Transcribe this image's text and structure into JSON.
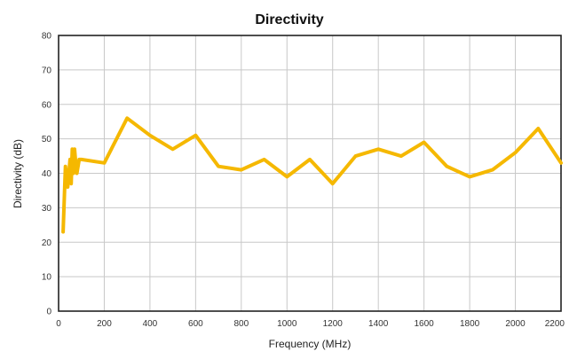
{
  "chart_data": {
    "type": "line",
    "title": "Directivity",
    "xlabel": "Frequency (MHz)",
    "ylabel": "Directivity (dB)",
    "xlim": [
      0,
      2200
    ],
    "ylim": [
      0,
      80
    ],
    "xticks": [
      0,
      200,
      400,
      600,
      800,
      1000,
      1200,
      1400,
      1600,
      1800,
      2000,
      2200
    ],
    "yticks": [
      0,
      10,
      20,
      30,
      40,
      50,
      60,
      70,
      80
    ],
    "grid": true,
    "legend": "none",
    "color": "#f5b800",
    "series": [
      {
        "x": [
          20,
          30,
          40,
          50,
          55,
          60,
          65,
          70,
          75,
          80,
          90,
          100,
          200,
          300,
          400,
          500,
          600,
          700,
          800,
          900,
          1000,
          1100,
          1200,
          1300,
          1400,
          1500,
          1600,
          1700,
          1800,
          1900,
          2000,
          2100,
          2200
        ],
        "y": [
          23,
          42,
          36,
          44,
          37,
          47,
          40,
          47,
          43,
          40,
          44,
          44,
          43,
          56,
          51,
          47,
          51,
          42,
          41,
          44,
          39,
          44,
          37,
          45,
          47,
          45,
          49,
          42,
          39,
          41,
          46,
          53,
          43
        ]
      }
    ]
  }
}
